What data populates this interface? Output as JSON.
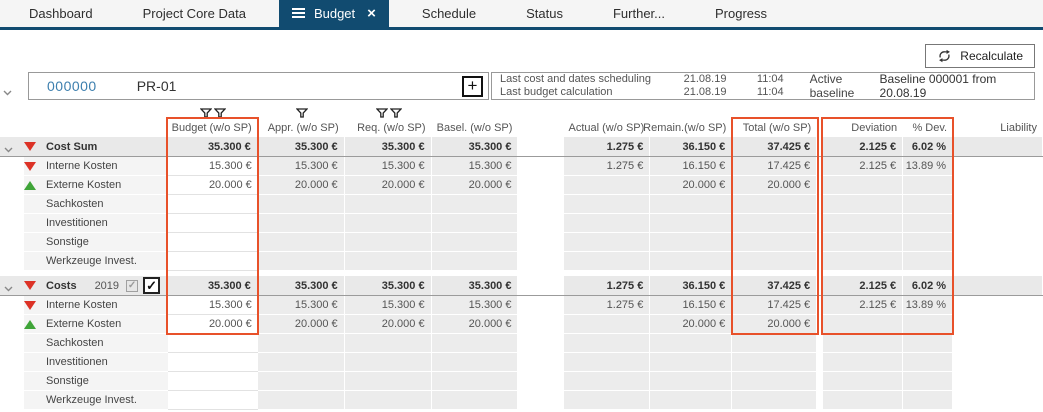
{
  "colors": {
    "accent_navy": "#114b70",
    "highlight_orange": "#e8512a",
    "negative_red": "#dc3226",
    "positive_green": "#3fa438",
    "readonly_cell_gray": "#ececec"
  },
  "icons": {
    "menu_icon": "menu-icon",
    "close_glyph": "×",
    "add_glyph": "+",
    "check_glyph": "✓",
    "recalculate_icon": "recalculate-refresh-icon",
    "filter_icon": "filter-funnel-icon",
    "chevron_icon": "chevron-down-icon"
  },
  "tabs": [
    {
      "label": "Dashboard",
      "active": false
    },
    {
      "label": "Project Core Data",
      "active": false
    },
    {
      "label": "Budget",
      "active": true,
      "closable": true
    },
    {
      "label": "Schedule",
      "active": false
    },
    {
      "label": "Status",
      "active": false
    },
    {
      "label": "Further...",
      "active": false
    },
    {
      "label": "Progress",
      "active": false
    }
  ],
  "toolbar": {
    "recalculate_label": "Recalculate"
  },
  "project_bar": {
    "id": "000000",
    "name": "PR-01",
    "info": {
      "row1_label": "Last cost and dates scheduling",
      "row1_date": "21.08.19",
      "row1_time": "11:04",
      "row2_label": "Last budget calculation",
      "row2_date": "21.08.19",
      "row2_time": "11:04",
      "baseline_label": "Active baseline",
      "baseline_value": "Baseline 000001 from 20.08.19"
    }
  },
  "table": {
    "columns": [
      {
        "key": "budget",
        "label": "Budget (w/o SP)",
        "filters": 2,
        "highlighted": true
      },
      {
        "key": "appr",
        "label": "Appr. (w/o SP)",
        "filters": 1
      },
      {
        "key": "req",
        "label": "Req. (w/o SP)",
        "filters": 2
      },
      {
        "key": "basel",
        "label": "Basel. (w/o SP)",
        "filters": 0
      },
      {
        "key": "actual",
        "label": "Actual (w/o SP)",
        "filters": 0
      },
      {
        "key": "remain",
        "label": "Remain.(w/o SP)",
        "filters": 0
      },
      {
        "key": "total",
        "label": "Total (w/o SP)",
        "filters": 0,
        "highlighted": true
      },
      {
        "key": "deviation",
        "label": "Deviation",
        "filters": 0,
        "highlighted": true
      },
      {
        "key": "pdev",
        "label": "% Dev.",
        "filters": 0,
        "highlighted": true
      },
      {
        "key": "liability",
        "label": "Liability",
        "filters": 0
      }
    ],
    "groups": [
      {
        "header": {
          "label": "Cost Sum",
          "indicator": "red-down",
          "expanded": true,
          "values": [
            "35.300 €",
            "35.300 €",
            "35.300 €",
            "35.300 €",
            "1.275 €",
            "36.150 €",
            "37.425 €",
            "2.125 €",
            "6.02 %",
            ""
          ]
        },
        "rows": [
          {
            "label": "Interne Kosten",
            "indicator": "red-down",
            "values": [
              "15.300 €",
              "15.300 €",
              "15.300 €",
              "15.300 €",
              "1.275 €",
              "16.150 €",
              "17.425 €",
              "2.125 €",
              "13.89 %",
              ""
            ]
          },
          {
            "label": "Externe Kosten",
            "indicator": "green-up",
            "values": [
              "20.000 €",
              "20.000 €",
              "20.000 €",
              "20.000 €",
              "",
              "20.000 €",
              "20.000 €",
              "",
              "",
              ""
            ]
          },
          {
            "label": "Sachkosten",
            "values": [
              "",
              "",
              "",
              "",
              "",
              "",
              "",
              "",
              "",
              ""
            ]
          },
          {
            "label": "Investitionen",
            "values": [
              "",
              "",
              "",
              "",
              "",
              "",
              "",
              "",
              "",
              ""
            ]
          },
          {
            "label": "Sonstige",
            "values": [
              "",
              "",
              "",
              "",
              "",
              "",
              "",
              "",
              "",
              ""
            ]
          },
          {
            "label": "Werkzeuge Invest.",
            "values": [
              "",
              "",
              "",
              "",
              "",
              "",
              "",
              "",
              "",
              ""
            ]
          }
        ]
      },
      {
        "header": {
          "label": "Costs",
          "year": "2019",
          "indicator": "red-down",
          "expanded": true,
          "checkbox_disabled_checked": true,
          "checkbox_checked": true,
          "values": [
            "35.300 €",
            "35.300 €",
            "35.300 €",
            "35.300 €",
            "1.275 €",
            "36.150 €",
            "37.425 €",
            "2.125 €",
            "6.02 %",
            ""
          ]
        },
        "rows": [
          {
            "label": "Interne Kosten",
            "indicator": "red-down",
            "values": [
              "15.300 €",
              "15.300 €",
              "15.300 €",
              "15.300 €",
              "1.275 €",
              "16.150 €",
              "17.425 €",
              "2.125 €",
              "13.89 %",
              ""
            ]
          },
          {
            "label": "Externe Kosten",
            "indicator": "green-up",
            "values": [
              "20.000 €",
              "20.000 €",
              "20.000 €",
              "20.000 €",
              "",
              "20.000 €",
              "20.000 €",
              "",
              "",
              ""
            ]
          },
          {
            "label": "Sachkosten",
            "values": [
              "",
              "",
              "",
              "",
              "",
              "",
              "",
              "",
              "",
              ""
            ]
          },
          {
            "label": "Investitionen",
            "values": [
              "",
              "",
              "",
              "",
              "",
              "",
              "",
              "",
              "",
              ""
            ]
          },
          {
            "label": "Sonstige",
            "values": [
              "",
              "",
              "",
              "",
              "",
              "",
              "",
              "",
              "",
              ""
            ]
          },
          {
            "label": "Werkzeuge Invest.",
            "values": [
              "",
              "",
              "",
              "",
              "",
              "",
              "",
              "",
              "",
              ""
            ]
          }
        ]
      }
    ]
  }
}
